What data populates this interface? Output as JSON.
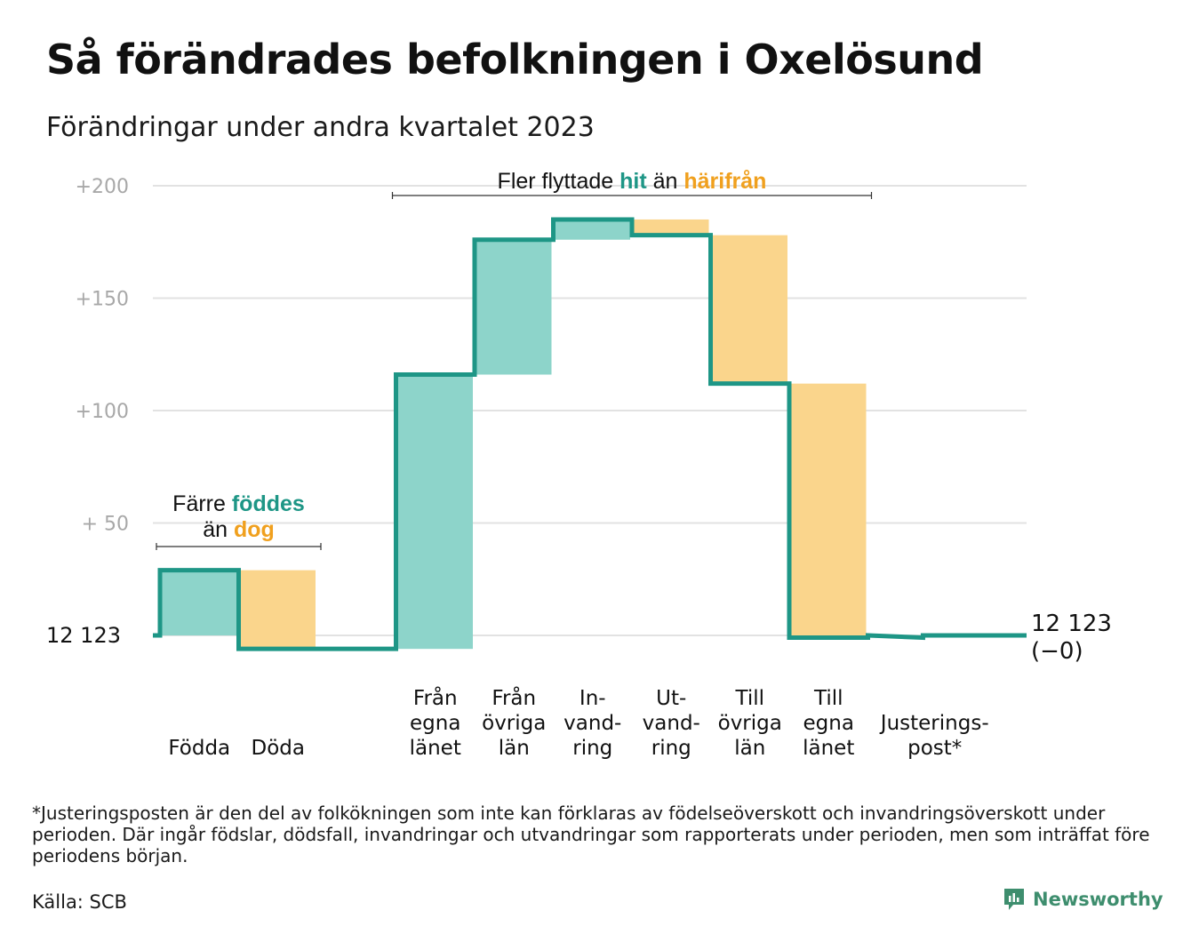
{
  "header": {
    "title": "Så förändrades befolkningen i Oxelösund",
    "subtitle": "Förändringar under andra kvartalet 2023"
  },
  "colors": {
    "inflow": "#8dd4ca",
    "outflow": "#fad58c",
    "line": "#1e9686",
    "accent_teal": "#1e9686",
    "accent_orange": "#f0a01e",
    "grid": "#e2e2e2",
    "tick": "#a8a8a8"
  },
  "chart_data": {
    "type": "waterfall",
    "baseline_label": "12  123",
    "end_label_line1": "12 123",
    "end_label_line2": "(−0)",
    "yticks": [
      {
        "value": 200,
        "label": "+200"
      },
      {
        "value": 150,
        "label": "+150"
      },
      {
        "value": 100,
        "label": "+100"
      },
      {
        "value": 50,
        "label": "+  50"
      }
    ],
    "ylim": [
      -10,
      210
    ],
    "steps": [
      {
        "label": [
          "Födda"
        ],
        "start": 0,
        "end": 29,
        "kind": "in"
      },
      {
        "label": [
          "Döda"
        ],
        "start": 29,
        "end": -6,
        "kind": "out"
      },
      {
        "label": [],
        "start": -6,
        "end": -6,
        "kind": "none"
      },
      {
        "label": [
          "Från",
          "egna",
          "länet"
        ],
        "start": -6,
        "end": 116,
        "kind": "in"
      },
      {
        "label": [
          "Från",
          "övriga",
          "län"
        ],
        "start": 116,
        "end": 176,
        "kind": "in"
      },
      {
        "label": [
          "In-",
          "vand-",
          "ring"
        ],
        "start": 176,
        "end": 185,
        "kind": "in"
      },
      {
        "label": [
          "Ut-",
          "vand-",
          "ring"
        ],
        "start": 185,
        "end": 178,
        "kind": "out"
      },
      {
        "label": [
          "Till",
          "övriga",
          "län"
        ],
        "start": 178,
        "end": 112,
        "kind": "out"
      },
      {
        "label": [
          "Till",
          "egna",
          "länet"
        ],
        "start": 112,
        "end": -1,
        "kind": "out"
      },
      {
        "label": [
          "Justerings-",
          "post*"
        ],
        "start": -1,
        "end": 0,
        "kind": "line",
        "span": 2
      }
    ],
    "annotations": [
      {
        "id": "births",
        "lines": [
          [
            {
              "t": "Färre ",
              "c": "plain"
            },
            {
              "t": "föddes",
              "c": "teal"
            }
          ],
          [
            {
              "t": "än ",
              "c": "plain"
            },
            {
              "t": "dog",
              "c": "orange"
            }
          ]
        ],
        "from_step": 0,
        "to_step": 1
      },
      {
        "id": "moves",
        "lines": [
          [
            {
              "t": "Fler flyttade ",
              "c": "plain"
            },
            {
              "t": "hit",
              "c": "teal"
            },
            {
              "t": "  än ",
              "c": "plain"
            },
            {
              "t": "härifrån",
              "c": "orange"
            }
          ]
        ],
        "from_step": 3,
        "to_step": 8
      }
    ]
  },
  "footer": {
    "footnote": "*Justeringsposten är den del av folkökningen som inte kan förklaras av födelseöverskott och invandringsöverskott under perioden. Där ingår födslar, dödsfall, invandringar och utvandringar som rapporterats under perioden, men som inträffat före periodens början.",
    "source": "Källa: SCB",
    "brand": "Newsworthy"
  }
}
